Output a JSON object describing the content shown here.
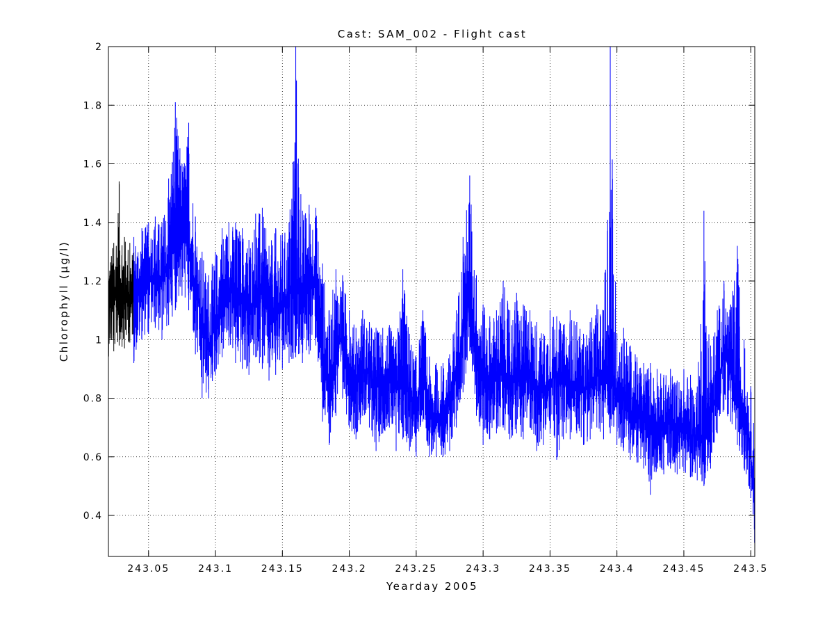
{
  "chart_data": {
    "type": "line",
    "title": "Cast: SAM_002 - Flight cast",
    "xlabel": "Yearday 2005",
    "ylabel": "Chlorophyll (µg/l)",
    "xlim": [
      243.02,
      243.503
    ],
    "ylim": [
      0.26,
      2.0
    ],
    "grid": true,
    "xticks": [
      243.05,
      243.1,
      243.15,
      243.2,
      243.25,
      243.3,
      243.35,
      243.4,
      243.45,
      243.5
    ],
    "xtick_labels": [
      "243.05",
      "243.1",
      "243.15",
      "243.2",
      "243.25",
      "243.3",
      "243.35",
      "243.4",
      "243.45",
      "243.5"
    ],
    "yticks": [
      0.4,
      0.6,
      0.8,
      1.0,
      1.2,
      1.4,
      1.6,
      1.8,
      2.0
    ],
    "ytick_labels": [
      "0.4",
      "0.6",
      "0.8",
      "1",
      "1.2",
      "1.4",
      "1.6",
      "1.8",
      "2"
    ],
    "series": [
      {
        "color": "#000000",
        "x": [
          243.02,
          243.024,
          243.028,
          243.032,
          243.036,
          243.039
        ],
        "y_mean": [
          1.12,
          1.14,
          1.15,
          1.15,
          1.14,
          1.15
        ],
        "y_min": [
          0.94,
          0.96,
          0.98,
          0.97,
          0.99,
          1.0
        ],
        "y_max": [
          1.3,
          1.33,
          1.54,
          1.35,
          1.33,
          1.3
        ]
      },
      {
        "color": "#0000ff",
        "x": [
          243.039,
          243.045,
          243.05,
          243.055,
          243.06,
          243.065,
          243.07,
          243.075,
          243.08,
          243.085,
          243.09,
          243.095,
          243.1,
          243.105,
          243.11,
          243.115,
          243.12,
          243.125,
          243.13,
          243.135,
          243.14,
          243.145,
          243.15,
          243.155,
          243.16,
          243.165,
          243.17,
          243.175,
          243.18,
          243.185,
          243.19,
          243.195,
          243.2,
          243.205,
          243.21,
          243.215,
          243.22,
          243.225,
          243.23,
          243.235,
          243.24,
          243.245,
          243.25,
          243.255,
          243.26,
          243.265,
          243.27,
          243.275,
          243.28,
          243.285,
          243.29,
          243.295,
          243.3,
          243.305,
          243.31,
          243.315,
          243.32,
          243.325,
          243.33,
          243.335,
          243.34,
          243.345,
          243.35,
          243.355,
          243.36,
          243.365,
          243.37,
          243.375,
          243.38,
          243.385,
          243.39,
          243.395,
          243.4,
          243.405,
          243.41,
          243.415,
          243.42,
          243.425,
          243.43,
          243.435,
          243.44,
          243.445,
          243.45,
          243.455,
          243.46,
          243.465,
          243.47,
          243.475,
          243.48,
          243.485,
          243.49,
          243.495,
          243.5,
          243.503
        ],
        "y_mean": [
          1.15,
          1.18,
          1.2,
          1.22,
          1.2,
          1.25,
          1.35,
          1.38,
          1.32,
          1.18,
          1.05,
          0.98,
          1.05,
          1.12,
          1.18,
          1.15,
          1.12,
          1.1,
          1.15,
          1.18,
          1.08,
          1.1,
          1.12,
          1.15,
          1.2,
          1.15,
          1.18,
          1.22,
          0.95,
          0.82,
          0.98,
          1.0,
          0.9,
          0.84,
          0.9,
          0.88,
          0.84,
          0.86,
          0.86,
          0.83,
          0.88,
          0.82,
          0.76,
          0.9,
          0.73,
          0.72,
          0.75,
          0.78,
          0.88,
          1.02,
          1.15,
          0.95,
          0.88,
          0.85,
          0.88,
          0.9,
          0.86,
          0.88,
          0.85,
          0.9,
          0.84,
          0.82,
          0.86,
          0.88,
          0.85,
          0.84,
          0.86,
          0.82,
          0.85,
          0.88,
          0.86,
          0.87,
          0.82,
          0.8,
          0.76,
          0.74,
          0.72,
          0.7,
          0.72,
          0.7,
          0.72,
          0.69,
          0.7,
          0.68,
          0.66,
          0.68,
          0.72,
          0.85,
          0.95,
          0.9,
          0.8,
          0.72,
          0.62,
          0.45
        ],
        "y_min": [
          0.92,
          1.0,
          1.02,
          1.04,
          1.0,
          1.05,
          1.1,
          1.15,
          1.1,
          0.95,
          0.8,
          0.8,
          0.88,
          0.94,
          0.98,
          0.92,
          0.9,
          0.88,
          0.94,
          0.9,
          0.86,
          0.88,
          0.9,
          0.92,
          0.94,
          0.92,
          0.95,
          0.98,
          0.72,
          0.64,
          0.74,
          0.8,
          0.7,
          0.66,
          0.74,
          0.7,
          0.62,
          0.68,
          0.7,
          0.62,
          0.66,
          0.62,
          0.6,
          0.72,
          0.6,
          0.6,
          0.6,
          0.62,
          0.7,
          0.82,
          0.96,
          0.74,
          0.64,
          0.66,
          0.68,
          0.7,
          0.66,
          0.68,
          0.66,
          0.7,
          0.62,
          0.64,
          0.68,
          0.59,
          0.66,
          0.66,
          0.68,
          0.64,
          0.66,
          0.7,
          0.66,
          0.68,
          0.64,
          0.62,
          0.59,
          0.58,
          0.56,
          0.47,
          0.56,
          0.54,
          0.56,
          0.54,
          0.55,
          0.53,
          0.52,
          0.5,
          0.56,
          0.68,
          0.76,
          0.72,
          0.64,
          0.56,
          0.46,
          0.28
        ],
        "y_max": [
          1.35,
          1.38,
          1.4,
          1.42,
          1.4,
          1.55,
          1.81,
          1.6,
          1.74,
          1.42,
          1.3,
          1.22,
          1.3,
          1.38,
          1.4,
          1.4,
          1.38,
          1.34,
          1.43,
          1.45,
          1.32,
          1.38,
          1.36,
          1.4,
          2.0,
          1.44,
          1.46,
          1.45,
          1.26,
          1.1,
          1.24,
          1.22,
          1.1,
          1.04,
          1.1,
          1.06,
          1.04,
          1.04,
          1.05,
          1.0,
          1.24,
          1.02,
          0.94,
          1.1,
          0.94,
          0.92,
          0.92,
          0.95,
          1.1,
          1.35,
          1.56,
          1.22,
          1.12,
          1.08,
          1.1,
          1.2,
          1.1,
          1.16,
          1.12,
          1.1,
          1.06,
          1.02,
          1.1,
          1.08,
          1.05,
          1.1,
          1.06,
          1.02,
          1.06,
          1.12,
          1.1,
          2.0,
          1.02,
          1.04,
          0.98,
          0.94,
          0.92,
          0.92,
          0.9,
          0.88,
          0.9,
          0.86,
          0.9,
          0.88,
          0.84,
          1.44,
          0.98,
          1.1,
          1.2,
          1.12,
          1.32,
          1.0,
          0.84,
          0.7
        ]
      }
    ]
  }
}
